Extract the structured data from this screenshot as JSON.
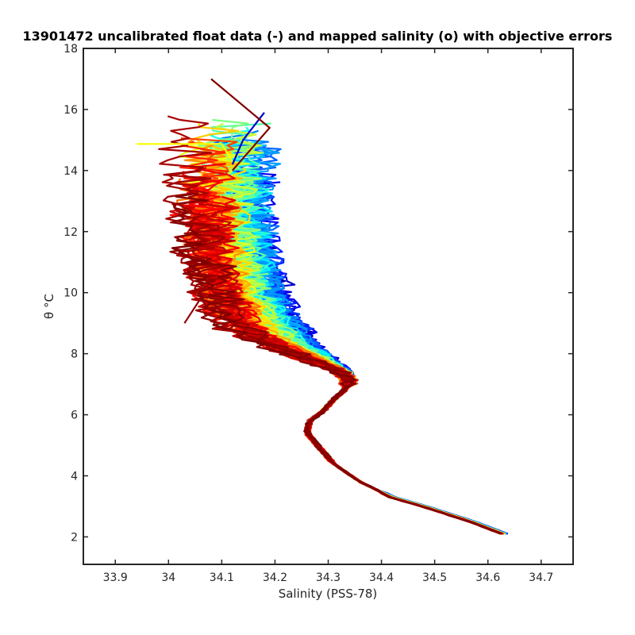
{
  "chart_data": {
    "type": "line",
    "title": "13901472 uncalibrated float data (-) and mapped salinity (o) with objective errors",
    "xlabel": "Salinity (PSS-78)",
    "ylabel": "θ °C",
    "xlim": [
      33.84,
      34.76
    ],
    "ylim": [
      1.1,
      18
    ],
    "xticks": [
      33.9,
      34.0,
      34.1,
      34.2,
      34.3,
      34.4,
      34.5,
      34.6,
      34.7
    ],
    "xtick_labels": [
      "33.9",
      "34",
      "34.1",
      "34.2",
      "34.3",
      "34.4",
      "34.5",
      "34.6",
      "34.7"
    ],
    "yticks": [
      2,
      4,
      6,
      8,
      10,
      12,
      14,
      16,
      18
    ],
    "ytick_labels": [
      "2",
      "4",
      "6",
      "8",
      "10",
      "12",
      "14",
      "16",
      "18"
    ],
    "grid": false,
    "colormap": "jet",
    "series_note": "profiles colored by cycle order, early=blue, late=dark red",
    "base_profile": {
      "x": [
        34.63,
        34.57,
        34.48,
        34.42,
        34.36,
        34.31,
        34.28,
        34.26,
        34.265,
        34.29,
        34.31,
        34.33,
        34.34,
        34.325,
        34.28,
        34.22,
        34.17,
        34.13,
        34.11,
        34.1,
        34.1
      ],
      "y": [
        2.1,
        2.5,
        3.0,
        3.3,
        3.8,
        4.4,
        5.0,
        5.4,
        5.8,
        6.1,
        6.5,
        6.8,
        7.1,
        7.4,
        7.8,
        8.3,
        8.9,
        10.0,
        11.5,
        13.0,
        15.0
      ]
    },
    "profile_count": 120,
    "colors": {
      "early": "#0000cc",
      "mid_early": "#00a0ff",
      "mid": "#40ffb0",
      "mid_late": "#ffff00",
      "late": "#ff8000",
      "latest": "#b00000"
    }
  }
}
